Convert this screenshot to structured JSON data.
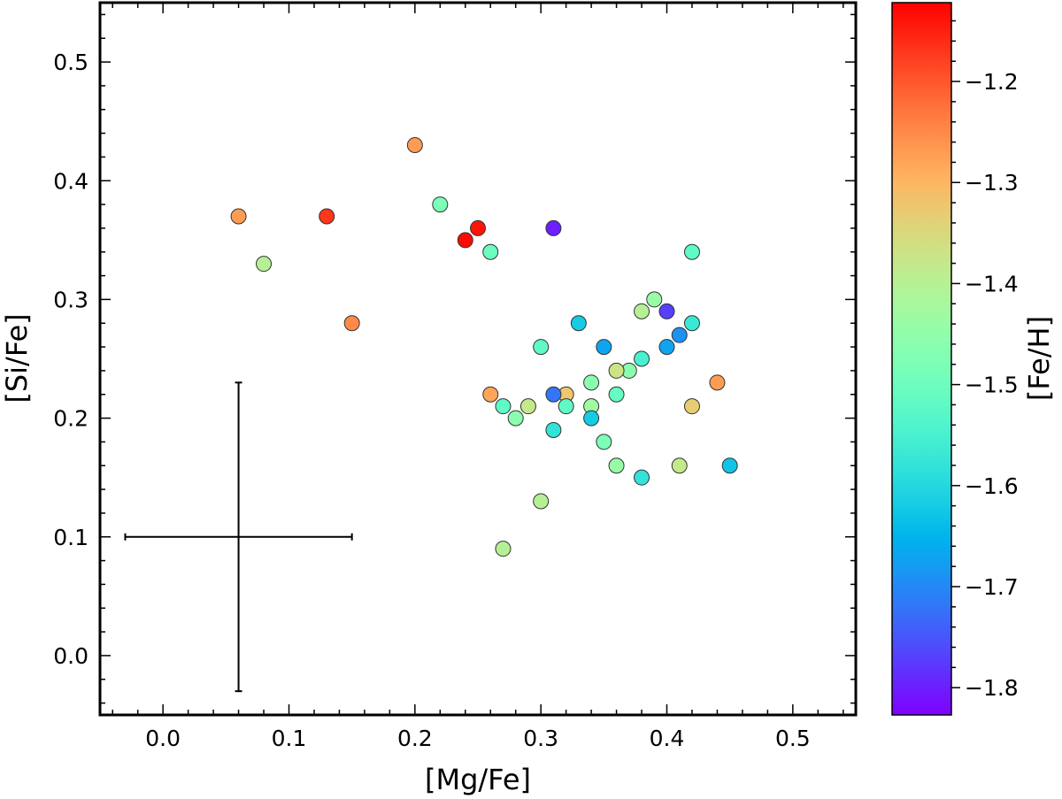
{
  "chart_data": {
    "type": "scatter",
    "xlabel": "[Mg/Fe]",
    "ylabel": "[Si/Fe]",
    "colorbar_label": "[Fe/H]",
    "colormap": "rainbow",
    "xlim": [
      -0.05,
      0.55
    ],
    "ylim": [
      -0.05,
      0.55
    ],
    "clim": [
      -1.827,
      -1.122
    ],
    "x_ticks": [
      "0.0",
      "0.1",
      "0.2",
      "0.3",
      "0.4",
      "0.5"
    ],
    "y_ticks": [
      "0.0",
      "0.1",
      "0.2",
      "0.3",
      "0.4",
      "0.5"
    ],
    "colorbar_ticks": [
      "−1.2",
      "−1.3",
      "−1.4",
      "−1.5",
      "−1.6",
      "−1.7",
      "−1.8"
    ],
    "grid": false,
    "points": [
      {
        "x": 0.06,
        "y": 0.37,
        "feh": -1.27
      },
      {
        "x": 0.08,
        "y": 0.33,
        "feh": -1.4
      },
      {
        "x": 0.13,
        "y": 0.37,
        "feh": -1.17
      },
      {
        "x": 0.15,
        "y": 0.28,
        "feh": -1.25
      },
      {
        "x": 0.2,
        "y": 0.43,
        "feh": -1.27
      },
      {
        "x": 0.22,
        "y": 0.38,
        "feh": -1.48
      },
      {
        "x": 0.24,
        "y": 0.35,
        "feh": -1.13
      },
      {
        "x": 0.25,
        "y": 0.36,
        "feh": -1.14
      },
      {
        "x": 0.26,
        "y": 0.34,
        "feh": -1.5
      },
      {
        "x": 0.31,
        "y": 0.36,
        "feh": -1.8
      },
      {
        "x": 0.42,
        "y": 0.34,
        "feh": -1.52
      },
      {
        "x": 0.39,
        "y": 0.3,
        "feh": -1.44
      },
      {
        "x": 0.38,
        "y": 0.29,
        "feh": -1.4
      },
      {
        "x": 0.4,
        "y": 0.29,
        "feh": -1.77
      },
      {
        "x": 0.33,
        "y": 0.28,
        "feh": -1.62
      },
      {
        "x": 0.42,
        "y": 0.28,
        "feh": -1.57
      },
      {
        "x": 0.41,
        "y": 0.27,
        "feh": -1.69
      },
      {
        "x": 0.3,
        "y": 0.26,
        "feh": -1.52
      },
      {
        "x": 0.35,
        "y": 0.26,
        "feh": -1.67
      },
      {
        "x": 0.4,
        "y": 0.26,
        "feh": -1.67
      },
      {
        "x": 0.38,
        "y": 0.25,
        "feh": -1.55
      },
      {
        "x": 0.37,
        "y": 0.24,
        "feh": -1.46
      },
      {
        "x": 0.36,
        "y": 0.24,
        "feh": -1.37
      },
      {
        "x": 0.34,
        "y": 0.23,
        "feh": -1.46
      },
      {
        "x": 0.44,
        "y": 0.23,
        "feh": -1.27
      },
      {
        "x": 0.26,
        "y": 0.22,
        "feh": -1.28
      },
      {
        "x": 0.32,
        "y": 0.22,
        "feh": -1.32
      },
      {
        "x": 0.31,
        "y": 0.22,
        "feh": -1.72
      },
      {
        "x": 0.36,
        "y": 0.22,
        "feh": -1.51
      },
      {
        "x": 0.27,
        "y": 0.21,
        "feh": -1.52
      },
      {
        "x": 0.29,
        "y": 0.21,
        "feh": -1.38
      },
      {
        "x": 0.32,
        "y": 0.21,
        "feh": -1.52
      },
      {
        "x": 0.34,
        "y": 0.21,
        "feh": -1.43
      },
      {
        "x": 0.42,
        "y": 0.21,
        "feh": -1.33
      },
      {
        "x": 0.28,
        "y": 0.2,
        "feh": -1.46
      },
      {
        "x": 0.34,
        "y": 0.2,
        "feh": -1.62
      },
      {
        "x": 0.31,
        "y": 0.19,
        "feh": -1.58
      },
      {
        "x": 0.35,
        "y": 0.18,
        "feh": -1.48
      },
      {
        "x": 0.36,
        "y": 0.16,
        "feh": -1.44
      },
      {
        "x": 0.41,
        "y": 0.16,
        "feh": -1.38
      },
      {
        "x": 0.45,
        "y": 0.16,
        "feh": -1.63
      },
      {
        "x": 0.38,
        "y": 0.15,
        "feh": -1.58
      },
      {
        "x": 0.3,
        "y": 0.13,
        "feh": -1.4
      },
      {
        "x": 0.27,
        "y": 0.09,
        "feh": -1.4
      }
    ],
    "error_bar": {
      "x": 0.06,
      "y": 0.1,
      "xerr": 0.09,
      "yerr": 0.13
    }
  }
}
